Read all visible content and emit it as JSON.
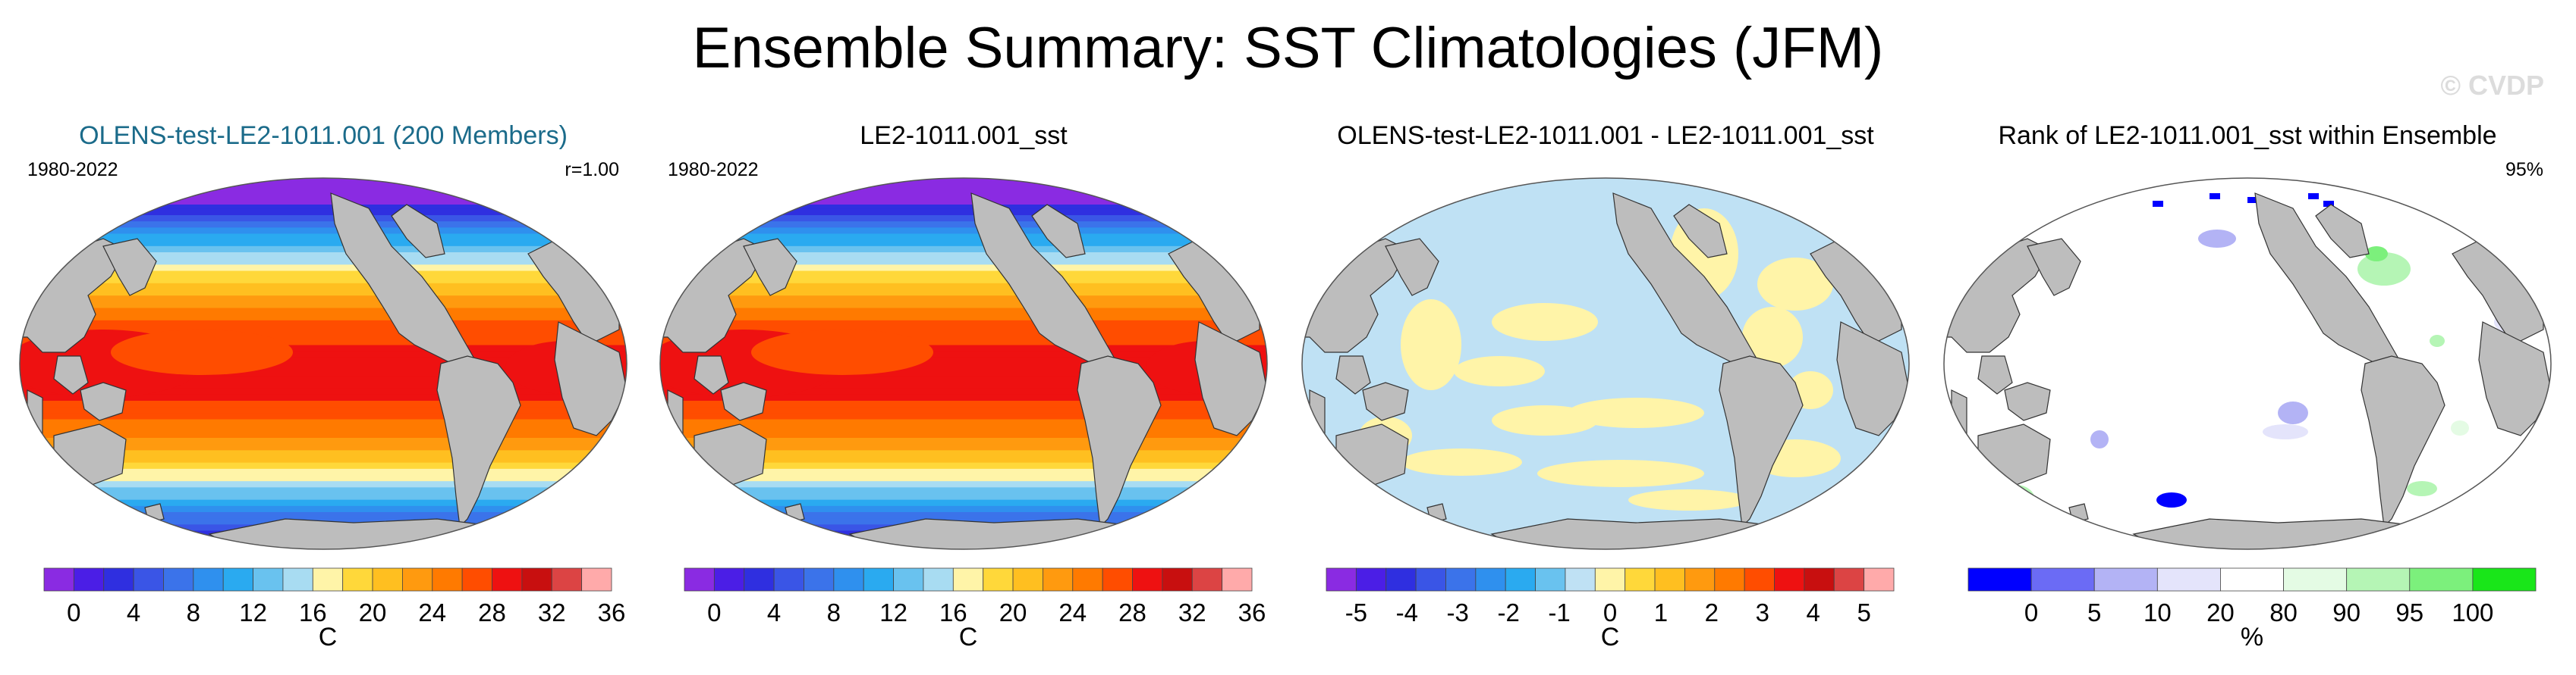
{
  "title": "Ensemble Summary: SST Climatologies (JFM)",
  "watermark": "© CVDP",
  "panels": [
    {
      "title": "OLENS-test-LE2-1011.001 (200 Members)",
      "title_color": "#1b6b8a",
      "period": "1980-2022",
      "stat": "r=1.00",
      "map_type": "sst",
      "colorbar": {
        "colors": [
          "#8a2be2",
          "#4b1ee6",
          "#2f2fe0",
          "#3a55e6",
          "#3b73ea",
          "#2f90ee",
          "#2aaaf0",
          "#69c2ef",
          "#a8dcf2",
          "#fff4a8",
          "#ffd83a",
          "#ffbf20",
          "#ff9a0f",
          "#ff7a00",
          "#ff4d00",
          "#ee1111",
          "#c80f0f",
          "#dc4444",
          "#ffaaaa"
        ],
        "tick_labels": [
          "0",
          "4",
          "8",
          "12",
          "16",
          "20",
          "24",
          "28",
          "32",
          "36"
        ],
        "units": "C"
      }
    },
    {
      "title": "LE2-1011.001_sst",
      "title_color": "#000000",
      "period": "1980-2022",
      "stat": "",
      "map_type": "sst",
      "colorbar": {
        "colors": [
          "#8a2be2",
          "#4b1ee6",
          "#2f2fe0",
          "#3a55e6",
          "#3b73ea",
          "#2f90ee",
          "#2aaaf0",
          "#69c2ef",
          "#a8dcf2",
          "#fff4a8",
          "#ffd83a",
          "#ffbf20",
          "#ff9a0f",
          "#ff7a00",
          "#ff4d00",
          "#ee1111",
          "#c80f0f",
          "#dc4444",
          "#ffaaaa"
        ],
        "tick_labels": [
          "0",
          "4",
          "8",
          "12",
          "16",
          "20",
          "24",
          "28",
          "32",
          "36"
        ],
        "units": "C"
      }
    },
    {
      "title": "OLENS-test-LE2-1011.001 - LE2-1011.001_sst",
      "title_color": "#000000",
      "period": "",
      "stat": "",
      "map_type": "diff",
      "colorbar": {
        "colors": [
          "#8a2be2",
          "#4b1ee6",
          "#2f2fe0",
          "#3a55e6",
          "#3b73ea",
          "#2f90ee",
          "#2aaaf0",
          "#69c2ef",
          "#bfe1f4",
          "#fff4a8",
          "#ffd83a",
          "#ffbf20",
          "#ff9a0f",
          "#ff7a00",
          "#ff4d00",
          "#ee1111",
          "#c80f0f",
          "#dc4444",
          "#ffaaaa"
        ],
        "tick_labels": [
          "-5",
          "-4",
          "-3",
          "-2",
          "-1",
          "0",
          "1",
          "2",
          "3",
          "4",
          "5"
        ],
        "units": "C"
      }
    },
    {
      "title": "Rank of LE2-1011.001_sst within Ensemble",
      "title_color": "#000000",
      "period": "",
      "stat": "95%",
      "map_type": "rank",
      "colorbar": {
        "colors": [
          "#0000ff",
          "#6b6bf5",
          "#b3b3f5",
          "#e4e4fb",
          "#ffffff",
          "#e4fbe4",
          "#b5f5b5",
          "#7cf07c",
          "#19e619"
        ],
        "tick_labels": [
          "0",
          "5",
          "10",
          "20",
          "80",
          "90",
          "95",
          "100"
        ],
        "units": "%"
      }
    }
  ]
}
